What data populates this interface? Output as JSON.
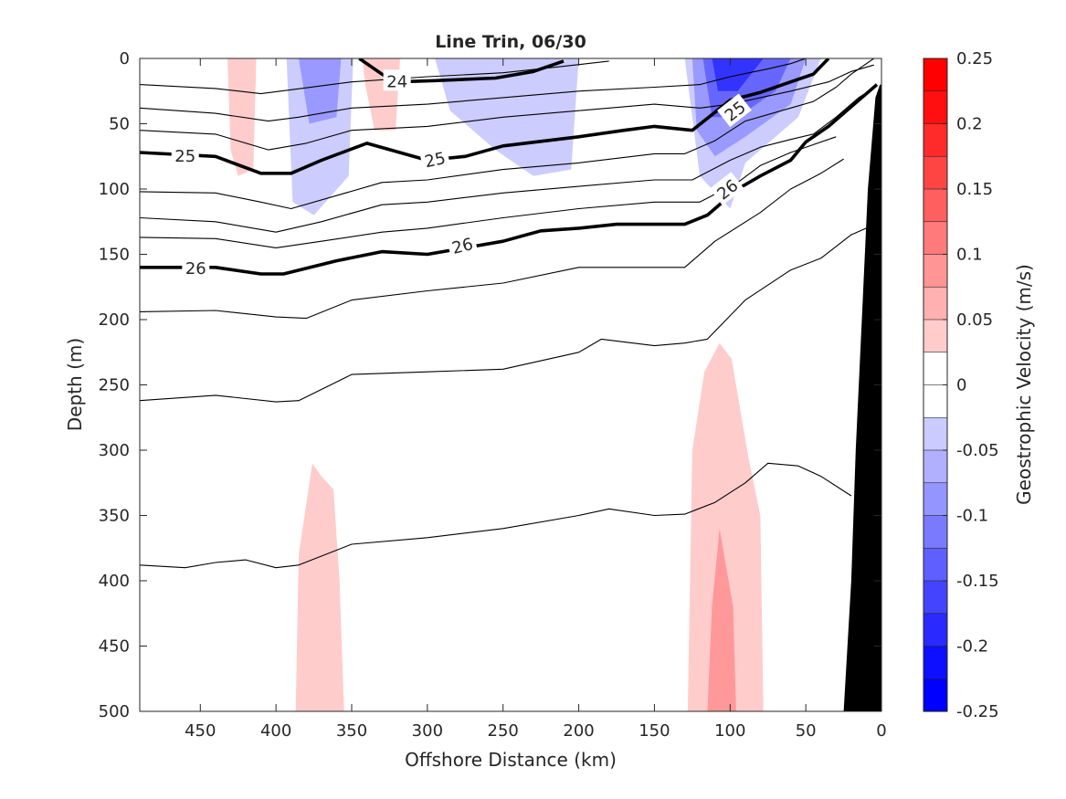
{
  "chart_data": {
    "type": "heatmap",
    "title": "Line Trin, 06/30",
    "xlabel": "Offshore Distance (km)",
    "ylabel": "Depth (m)",
    "xlim": [
      490,
      0
    ],
    "ylim": [
      0,
      500
    ],
    "xticks": [
      450,
      400,
      350,
      300,
      250,
      200,
      150,
      100,
      50,
      0
    ],
    "yticks": [
      0,
      50,
      100,
      150,
      200,
      250,
      300,
      350,
      400,
      450,
      500
    ],
    "colorbar": {
      "label": "Geostrophic Velocity (m/s)",
      "clim": [
        -0.25,
        0.25
      ],
      "ticks": [
        "0.25",
        "0.2",
        "0.15",
        "0.1",
        "0.05",
        "0",
        "-0.05",
        "-0.1",
        "-0.15",
        "-0.2",
        "-0.25"
      ],
      "levels": 20
    },
    "velocity_patches": [
      {
        "value": -0.05,
        "points": [
          [
            393,
            0
          ],
          [
            349,
            0
          ],
          [
            352,
            90
          ],
          [
            375,
            120
          ],
          [
            389,
            110
          ]
        ]
      },
      {
        "value": -0.1,
        "points": [
          [
            385,
            0
          ],
          [
            357,
            0
          ],
          [
            360,
            45
          ],
          [
            378,
            50
          ]
        ]
      },
      {
        "value": 0.05,
        "points": [
          [
            432,
            0
          ],
          [
            413,
            0
          ],
          [
            415,
            85
          ],
          [
            425,
            90
          ],
          [
            430,
            70
          ]
        ]
      },
      {
        "value": 0.05,
        "points": [
          [
            343,
            0
          ],
          [
            318,
            0
          ],
          [
            321,
            55
          ],
          [
            335,
            55
          ],
          [
            341,
            20
          ]
        ]
      },
      {
        "value": -0.05,
        "points": [
          [
            295,
            0
          ],
          [
            200,
            0
          ],
          [
            205,
            85
          ],
          [
            230,
            90
          ],
          [
            255,
            70
          ],
          [
            285,
            40
          ]
        ]
      },
      {
        "value": -0.05,
        "points": [
          [
            130,
            0
          ],
          [
            40,
            0
          ],
          [
            55,
            45
          ],
          [
            90,
            80
          ],
          [
            100,
            115
          ],
          [
            120,
            90
          ]
        ]
      },
      {
        "value": -0.1,
        "points": [
          [
            125,
            0
          ],
          [
            50,
            0
          ],
          [
            60,
            35
          ],
          [
            90,
            60
          ],
          [
            110,
            75
          ],
          [
            122,
            55
          ]
        ]
      },
      {
        "value": -0.15,
        "points": [
          [
            118,
            0
          ],
          [
            60,
            0
          ],
          [
            70,
            25
          ],
          [
            95,
            45
          ],
          [
            112,
            45
          ]
        ]
      },
      {
        "value": -0.2,
        "points": [
          [
            112,
            0
          ],
          [
            78,
            0
          ],
          [
            95,
            25
          ],
          [
            108,
            25
          ]
        ]
      },
      {
        "value": 0.05,
        "points": [
          [
            128,
            500
          ],
          [
            78,
            500
          ],
          [
            80,
            350
          ],
          [
            88,
            305
          ],
          [
            99,
            230
          ],
          [
            107,
            218
          ],
          [
            117,
            240
          ],
          [
            125,
            300
          ]
        ]
      },
      {
        "value": 0.05,
        "points": [
          [
            387,
            500
          ],
          [
            355,
            500
          ],
          [
            358,
            400
          ],
          [
            362,
            330
          ],
          [
            370,
            320
          ],
          [
            376,
            310
          ],
          [
            385,
            380
          ]
        ]
      },
      {
        "value": 0.1,
        "points": [
          [
            115,
            500
          ],
          [
            96,
            500
          ],
          [
            98,
            420
          ],
          [
            107,
            360
          ],
          [
            112,
            420
          ]
        ]
      }
    ],
    "isopycnals": [
      {
        "value": 23.5,
        "label": "",
        "bold": false,
        "points": [
          [
            490,
            20
          ],
          [
            440,
            23
          ],
          [
            410,
            27
          ],
          [
            390,
            24
          ],
          [
            350,
            18
          ],
          [
            300,
            14
          ],
          [
            250,
            11
          ],
          [
            210,
            6
          ],
          [
            180,
            2
          ]
        ]
      },
      {
        "value": 24,
        "label": "24",
        "bold": true,
        "points": [
          [
            345,
            0
          ],
          [
            330,
            12
          ],
          [
            320,
            18
          ],
          [
            295,
            17
          ],
          [
            255,
            15
          ],
          [
            230,
            10
          ],
          [
            210,
            2
          ]
        ]
      },
      {
        "value": 24.33,
        "label": "",
        "bold": false,
        "points": [
          [
            490,
            38
          ],
          [
            440,
            42
          ],
          [
            405,
            48
          ],
          [
            385,
            45
          ],
          [
            350,
            38
          ],
          [
            300,
            35
          ],
          [
            250,
            30
          ],
          [
            200,
            25
          ],
          [
            150,
            22
          ],
          [
            120,
            20
          ],
          [
            100,
            14
          ],
          [
            75,
            8
          ],
          [
            60,
            4
          ],
          [
            50,
            0
          ]
        ]
      },
      {
        "value": 24.67,
        "label": "",
        "bold": false,
        "points": [
          [
            490,
            55
          ],
          [
            440,
            58
          ],
          [
            405,
            70
          ],
          [
            380,
            65
          ],
          [
            350,
            55
          ],
          [
            300,
            52
          ],
          [
            250,
            45
          ],
          [
            200,
            40
          ],
          [
            150,
            35
          ],
          [
            120,
            38
          ],
          [
            100,
            35
          ],
          [
            60,
            25
          ],
          [
            35,
            18
          ],
          [
            20,
            10
          ],
          [
            5,
            5
          ]
        ]
      },
      {
        "value": 25,
        "label": "25",
        "bold": true,
        "points": [
          [
            490,
            72
          ],
          [
            440,
            75
          ],
          [
            410,
            88
          ],
          [
            390,
            88
          ],
          [
            370,
            78
          ],
          [
            340,
            65
          ],
          [
            300,
            78
          ],
          [
            275,
            75
          ],
          [
            250,
            67
          ],
          [
            200,
            60
          ],
          [
            170,
            55
          ],
          [
            150,
            52
          ],
          [
            125,
            55
          ],
          [
            100,
            32
          ],
          [
            80,
            26
          ],
          [
            60,
            18
          ],
          [
            45,
            12
          ],
          [
            35,
            0
          ]
        ]
      },
      {
        "value": 25.33,
        "label": "",
        "bold": false,
        "points": [
          [
            490,
            102
          ],
          [
            440,
            103
          ],
          [
            410,
            110
          ],
          [
            390,
            115
          ],
          [
            360,
            105
          ],
          [
            330,
            95
          ],
          [
            300,
            93
          ],
          [
            250,
            85
          ],
          [
            200,
            80
          ],
          [
            150,
            73
          ],
          [
            130,
            73
          ],
          [
            110,
            63
          ],
          [
            90,
            48
          ],
          [
            60,
            38
          ],
          [
            45,
            33
          ],
          [
            30,
            22
          ],
          [
            20,
            12
          ],
          [
            5,
            0
          ]
        ]
      },
      {
        "value": 25.67,
        "label": "",
        "bold": false,
        "points": [
          [
            490,
            122
          ],
          [
            440,
            125
          ],
          [
            400,
            133
          ],
          [
            370,
            125
          ],
          [
            330,
            112
          ],
          [
            300,
            110
          ],
          [
            250,
            103
          ],
          [
            200,
            98
          ],
          [
            150,
            93
          ],
          [
            125,
            93
          ],
          [
            100,
            78
          ],
          [
            80,
            68
          ],
          [
            60,
            62
          ],
          [
            45,
            58
          ],
          [
            30,
            45
          ],
          [
            15,
            30
          ],
          [
            4,
            22
          ]
        ]
      },
      {
        "value": 26,
        "label": "26",
        "bold": true,
        "points": [
          [
            490,
            160
          ],
          [
            440,
            160
          ],
          [
            410,
            165
          ],
          [
            395,
            165
          ],
          [
            360,
            155
          ],
          [
            330,
            148
          ],
          [
            300,
            150
          ],
          [
            275,
            145
          ],
          [
            250,
            140
          ],
          [
            225,
            132
          ],
          [
            200,
            130
          ],
          [
            175,
            127
          ],
          [
            150,
            127
          ],
          [
            130,
            127
          ],
          [
            115,
            120
          ],
          [
            95,
            100
          ],
          [
            80,
            90
          ],
          [
            60,
            78
          ],
          [
            50,
            64
          ],
          [
            35,
            52
          ],
          [
            15,
            32
          ],
          [
            3,
            20
          ]
        ]
      },
      {
        "value": 26.33,
        "label": "",
        "bold": false,
        "points": [
          [
            490,
            137
          ],
          [
            440,
            138
          ],
          [
            400,
            145
          ],
          [
            370,
            140
          ],
          [
            330,
            133
          ],
          [
            300,
            130
          ],
          [
            250,
            122
          ],
          [
            200,
            115
          ],
          [
            150,
            110
          ],
          [
            120,
            110
          ],
          [
            95,
            95
          ],
          [
            80,
            82
          ],
          [
            60,
            72
          ],
          [
            45,
            66
          ],
          [
            30,
            60
          ]
        ]
      },
      {
        "value": 26.67,
        "label": "",
        "bold": false,
        "points": [
          [
            490,
            194
          ],
          [
            440,
            193
          ],
          [
            400,
            198
          ],
          [
            380,
            199
          ],
          [
            350,
            185
          ],
          [
            300,
            178
          ],
          [
            250,
            172
          ],
          [
            200,
            160
          ],
          [
            150,
            160
          ],
          [
            130,
            160
          ],
          [
            110,
            140
          ],
          [
            80,
            118
          ],
          [
            60,
            100
          ],
          [
            40,
            88
          ],
          [
            25,
            77
          ]
        ]
      },
      {
        "value": 27,
        "label": "",
        "bold": false,
        "points": [
          [
            490,
            262
          ],
          [
            440,
            258
          ],
          [
            400,
            263
          ],
          [
            385,
            262
          ],
          [
            350,
            242
          ],
          [
            300,
            240
          ],
          [
            250,
            238
          ],
          [
            200,
            225
          ],
          [
            185,
            215
          ],
          [
            150,
            220
          ],
          [
            130,
            218
          ],
          [
            115,
            215
          ],
          [
            90,
            185
          ],
          [
            60,
            162
          ],
          [
            40,
            153
          ],
          [
            20,
            135
          ],
          [
            10,
            130
          ]
        ]
      },
      {
        "value": 27.33,
        "label": "",
        "bold": false,
        "points": [
          [
            490,
            388
          ],
          [
            460,
            390
          ],
          [
            440,
            386
          ],
          [
            420,
            384
          ],
          [
            400,
            390
          ],
          [
            385,
            388
          ],
          [
            350,
            372
          ],
          [
            300,
            367
          ],
          [
            250,
            360
          ],
          [
            200,
            350
          ],
          [
            180,
            345
          ],
          [
            150,
            350
          ],
          [
            130,
            349
          ],
          [
            110,
            340
          ],
          [
            90,
            325
          ],
          [
            75,
            310
          ],
          [
            55,
            312
          ],
          [
            40,
            320
          ],
          [
            20,
            335
          ]
        ]
      }
    ],
    "bathymetry": [
      [
        25,
        500
      ],
      [
        20,
        400
      ],
      [
        17,
        300
      ],
      [
        13,
        200
      ],
      [
        9,
        100
      ],
      [
        4,
        30
      ],
      [
        1,
        20
      ],
      [
        0,
        20
      ],
      [
        0,
        500
      ]
    ]
  }
}
